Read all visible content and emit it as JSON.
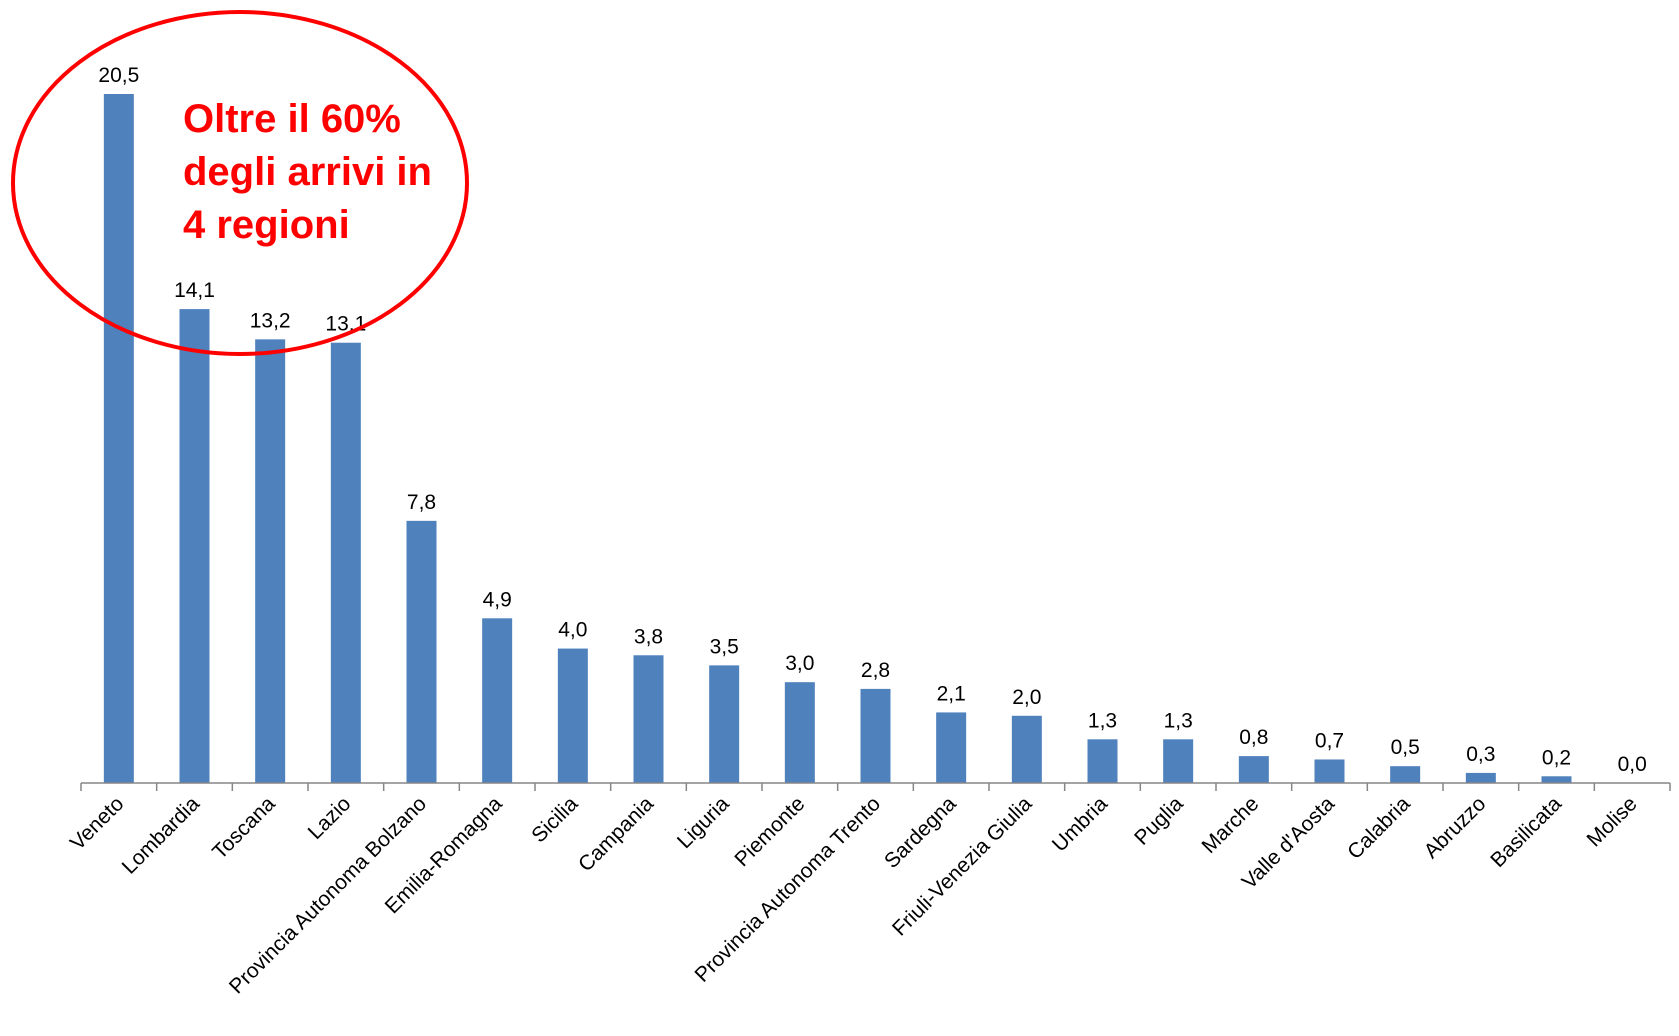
{
  "chart_data": {
    "type": "bar",
    "categories": [
      "Veneto",
      "Lombardia",
      "Toscana",
      "Lazio",
      "Provincia Autonoma Bolzano",
      "Emilia-Romagna",
      "Sicilia",
      "Campania",
      "Liguria",
      "Piemonte",
      "Provincia Autonoma Trento",
      "Sardegna",
      "Friuli-Venezia Giulia",
      "Umbria",
      "Puglia",
      "Marche",
      "Valle d'Aosta",
      "Calabria",
      "Abruzzo",
      "Basilicata",
      "Molise"
    ],
    "values": [
      20.5,
      14.1,
      13.2,
      13.1,
      7.8,
      4.9,
      4.0,
      3.8,
      3.5,
      3.0,
      2.8,
      2.1,
      2.0,
      1.3,
      1.3,
      0.8,
      0.7,
      0.5,
      0.3,
      0.2,
      0.0
    ],
    "value_labels": [
      "20,5",
      "14,1",
      "13,2",
      "13,1",
      "7,8",
      "4,9",
      "4,0",
      "3,8",
      "3,5",
      "3,0",
      "2,8",
      "2,1",
      "2,0",
      "1,3",
      "1,3",
      "0,8",
      "0,7",
      "0,5",
      "0,3",
      "0,2",
      "0,0"
    ],
    "ylim": [
      0,
      20.5
    ],
    "grid": false,
    "legend": "none",
    "bar_color": "#4F81BD",
    "annotation": {
      "lines": [
        "Oltre il 60%",
        "degli arrivi in",
        "4 regioni"
      ],
      "color": "#FF0000"
    }
  }
}
